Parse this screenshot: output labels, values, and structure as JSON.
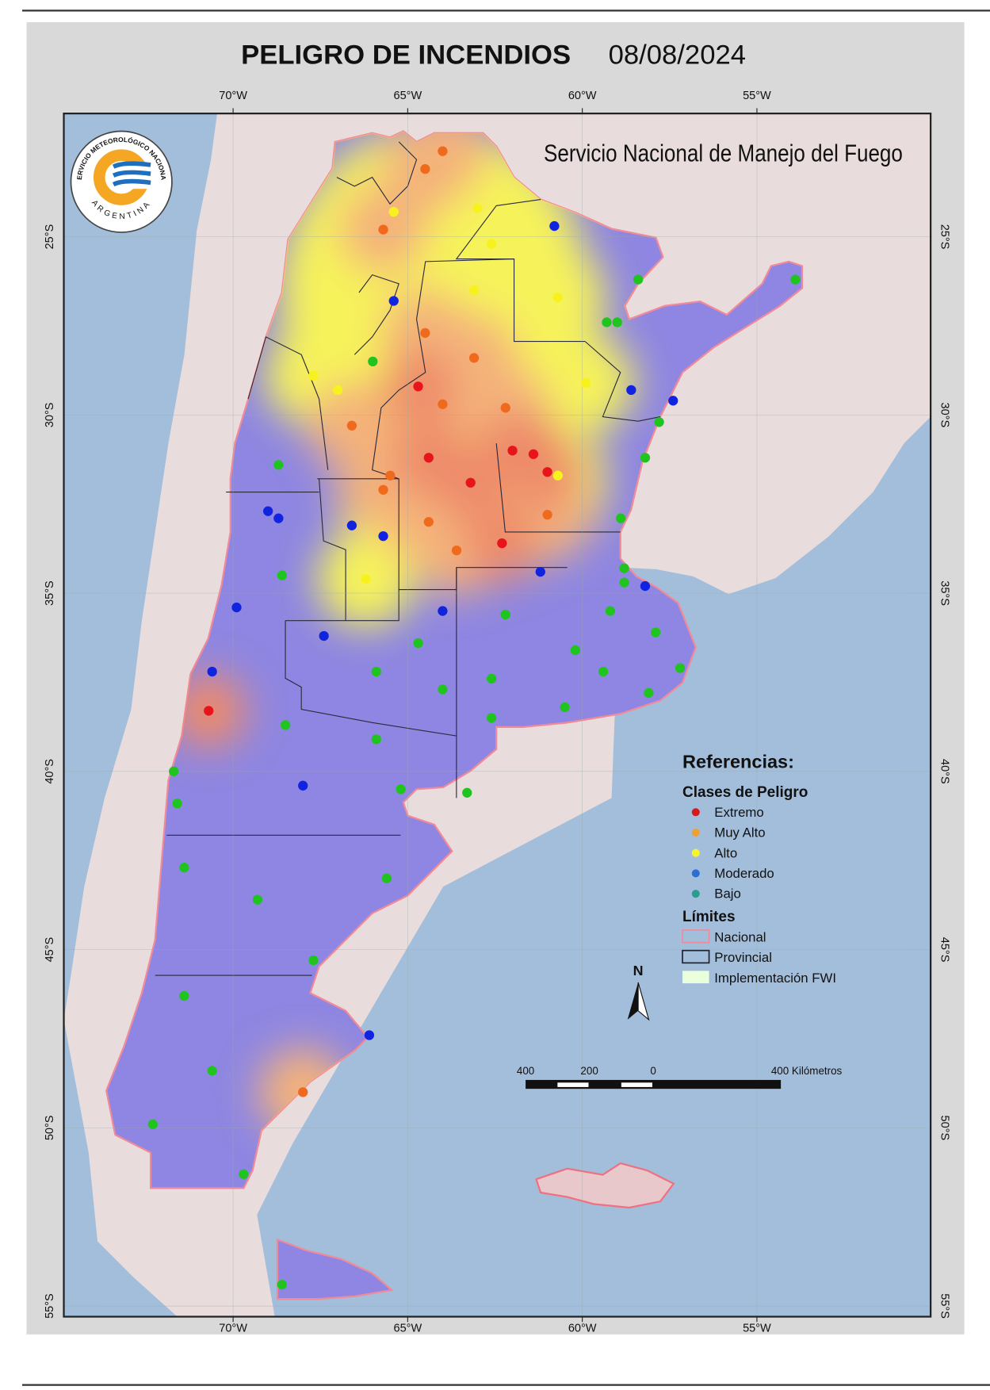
{
  "title": "PELIGRO DE INCENDIOS",
  "date": "08/08/2024",
  "agency": "Servicio Nacional de Manejo del Fuego",
  "logo": {
    "top_text": "SERVICIO METEOROLÓGICO NACIONAL",
    "bottom_text": "ARGENTINA",
    "colors": [
      "#f5a623",
      "#1e6fc0"
    ]
  },
  "lon_ticks": [
    "70°W",
    "65°W",
    "60°W",
    "55°W"
  ],
  "lat_ticks": [
    "25°S",
    "30°S",
    "35°S",
    "40°S",
    "45°S",
    "50°S",
    "55°S"
  ],
  "legend": {
    "title": "Referencias:",
    "classes_title": "Clases de Peligro",
    "classes": [
      {
        "label": "Extremo",
        "color": "#d7191c"
      },
      {
        "label": "Muy Alto",
        "color": "#f0a030"
      },
      {
        "label": "Alto",
        "color": "#f5f52a"
      },
      {
        "label": "Moderado",
        "color": "#2b6fd6"
      },
      {
        "label": "Bajo",
        "color": "#2a9d8f"
      }
    ],
    "limits_title": "Límites",
    "limits": [
      {
        "label": "Nacional",
        "style": "pink-outline"
      },
      {
        "label": "Provincial",
        "style": "dark-outline"
      },
      {
        "label": "Implementación FWI",
        "style": "pale-green-fill"
      }
    ]
  },
  "north_arrow": "N",
  "scale_bar": {
    "labels": [
      "400",
      "200",
      "0",
      "400 Kilómetros"
    ]
  },
  "colors": {
    "ocean": "#a3bedb",
    "land": "#e9dcdc",
    "low_danger_fill": "#8e86e2",
    "frame": "#d9d9d9"
  },
  "stations": {
    "Extremo": {
      "color": "#e8141c",
      "points": [
        [
          64.7,
          29.2
        ],
        [
          64.4,
          31.2
        ],
        [
          63.2,
          31.9
        ],
        [
          62.0,
          31.0
        ],
        [
          61.4,
          31.1
        ],
        [
          61.0,
          31.6
        ],
        [
          62.3,
          33.6
        ],
        [
          70.7,
          38.3
        ]
      ]
    },
    "Muy Alto": {
      "color": "#f06a1e",
      "points": [
        [
          64.0,
          22.6
        ],
        [
          64.5,
          23.1
        ],
        [
          65.7,
          24.8
        ],
        [
          64.5,
          27.7
        ],
        [
          63.1,
          28.4
        ],
        [
          64.0,
          29.7
        ],
        [
          62.2,
          29.8
        ],
        [
          66.6,
          30.3
        ],
        [
          65.5,
          31.7
        ],
        [
          65.7,
          32.1
        ],
        [
          64.4,
          33.0
        ],
        [
          63.6,
          33.8
        ],
        [
          61.0,
          32.8
        ],
        [
          68.0,
          49.0
        ]
      ]
    },
    "Alto": {
      "color": "#f7f21e",
      "points": [
        [
          65.4,
          24.3
        ],
        [
          63.0,
          24.2
        ],
        [
          62.6,
          25.2
        ],
        [
          63.1,
          26.5
        ],
        [
          60.7,
          26.7
        ],
        [
          67.7,
          28.9
        ],
        [
          67.0,
          29.3
        ],
        [
          59.9,
          29.1
        ],
        [
          60.7,
          31.7
        ],
        [
          66.2,
          34.6
        ]
      ]
    },
    "Moderado": {
      "color": "#1024e0",
      "points": [
        [
          60.8,
          24.7
        ],
        [
          65.4,
          26.8
        ],
        [
          58.6,
          29.3
        ],
        [
          57.4,
          29.6
        ],
        [
          69.0,
          32.7
        ],
        [
          68.7,
          32.9
        ],
        [
          66.6,
          33.1
        ],
        [
          65.7,
          33.4
        ],
        [
          61.2,
          34.4
        ],
        [
          58.2,
          34.8
        ],
        [
          69.9,
          35.4
        ],
        [
          64.0,
          35.5
        ],
        [
          67.4,
          36.2
        ],
        [
          70.6,
          37.2
        ],
        [
          68.0,
          40.4
        ],
        [
          66.1,
          47.4
        ]
      ]
    },
    "Bajo": {
      "color": "#1fc41f",
      "points": [
        [
          58.4,
          26.2
        ],
        [
          59.3,
          27.4
        ],
        [
          59.0,
          27.4
        ],
        [
          66.0,
          28.5
        ],
        [
          57.8,
          30.2
        ],
        [
          58.2,
          31.2
        ],
        [
          68.7,
          31.4
        ],
        [
          58.9,
          32.9
        ],
        [
          58.8,
          34.3
        ],
        [
          58.8,
          34.7
        ],
        [
          68.6,
          34.5
        ],
        [
          62.2,
          35.6
        ],
        [
          59.2,
          35.5
        ],
        [
          57.9,
          36.1
        ],
        [
          64.7,
          36.4
        ],
        [
          60.2,
          36.6
        ],
        [
          65.9,
          37.2
        ],
        [
          59.4,
          37.2
        ],
        [
          57.2,
          37.1
        ],
        [
          62.6,
          37.4
        ],
        [
          64.0,
          37.7
        ],
        [
          58.1,
          37.8
        ],
        [
          60.5,
          38.2
        ],
        [
          62.6,
          38.5
        ],
        [
          68.5,
          38.7
        ],
        [
          65.9,
          39.1
        ],
        [
          71.7,
          40.0
        ],
        [
          65.2,
          40.5
        ],
        [
          63.3,
          40.6
        ],
        [
          71.6,
          40.9
        ],
        [
          71.4,
          42.7
        ],
        [
          65.6,
          43.0
        ],
        [
          69.3,
          43.6
        ],
        [
          67.7,
          45.3
        ],
        [
          71.4,
          46.3
        ],
        [
          70.6,
          48.4
        ],
        [
          72.3,
          49.9
        ],
        [
          69.7,
          51.3
        ],
        [
          68.6,
          54.4
        ],
        [
          53.9,
          26.2
        ]
      ]
    }
  }
}
